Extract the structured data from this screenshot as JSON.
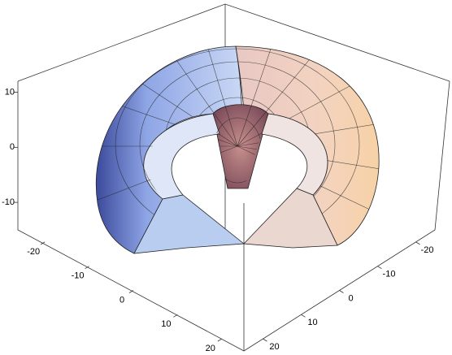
{
  "chart_data": {
    "type": "surface3d",
    "xlim": [
      -25,
      25
    ],
    "xticks": [
      -20,
      -10,
      0,
      10,
      20
    ],
    "ylim": [
      -25,
      25
    ],
    "yticks": [
      -20,
      -10,
      0,
      10,
      20
    ],
    "zlim": [
      -15,
      12
    ],
    "zticks": [
      -10,
      0,
      10
    ]
  }
}
